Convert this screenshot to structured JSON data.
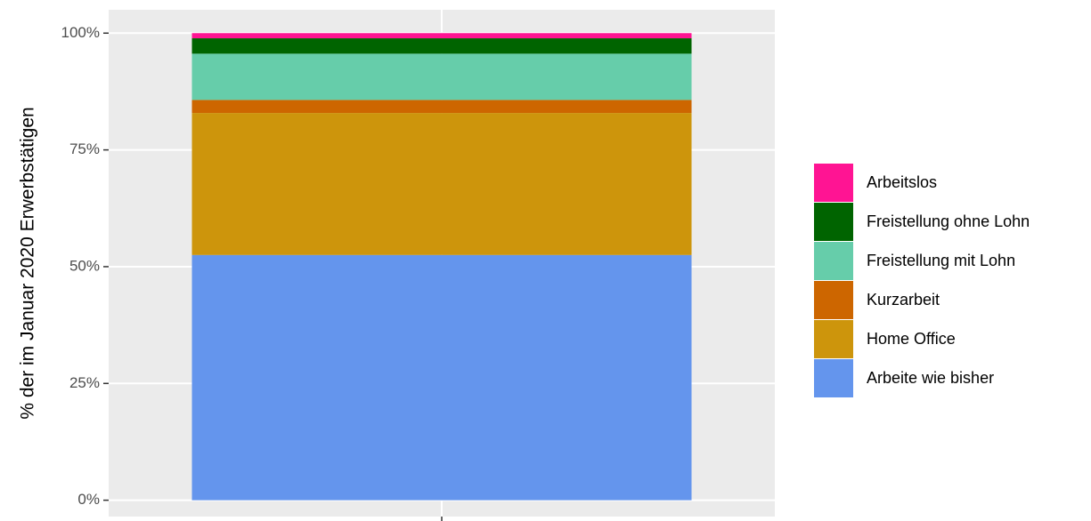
{
  "chart_data": {
    "type": "stacked-bar",
    "y_label": "% der im Januar 2020 Erwerbstätigen",
    "categories": [
      null
    ],
    "series": [
      {
        "name": "Arbeite wie bisher",
        "color": "#6495ED",
        "values": [
          52.5
        ]
      },
      {
        "name": "Home Office",
        "color": "#CD950C",
        "values": [
          30.4
        ]
      },
      {
        "name": "Kurzarbeit",
        "color": "#CD6600",
        "values": [
          2.8
        ]
      },
      {
        "name": "Freistellung mit Lohn",
        "color": "#66CDAA",
        "values": [
          9.9
        ]
      },
      {
        "name": "Freistellung ohne Lohn",
        "color": "#006400",
        "values": [
          3.3
        ]
      },
      {
        "name": "Arbeitslos",
        "color": "#FF1493",
        "values": [
          1.1
        ]
      }
    ],
    "ylim": [
      -3.5,
      105
    ],
    "yticks": [
      {
        "value": 0,
        "label": "0%"
      },
      {
        "value": 25,
        "label": "25%"
      },
      {
        "value": 50,
        "label": "50%"
      },
      {
        "value": 75,
        "label": "75%"
      },
      {
        "value": 100,
        "label": "100%"
      }
    ],
    "grid": true
  }
}
